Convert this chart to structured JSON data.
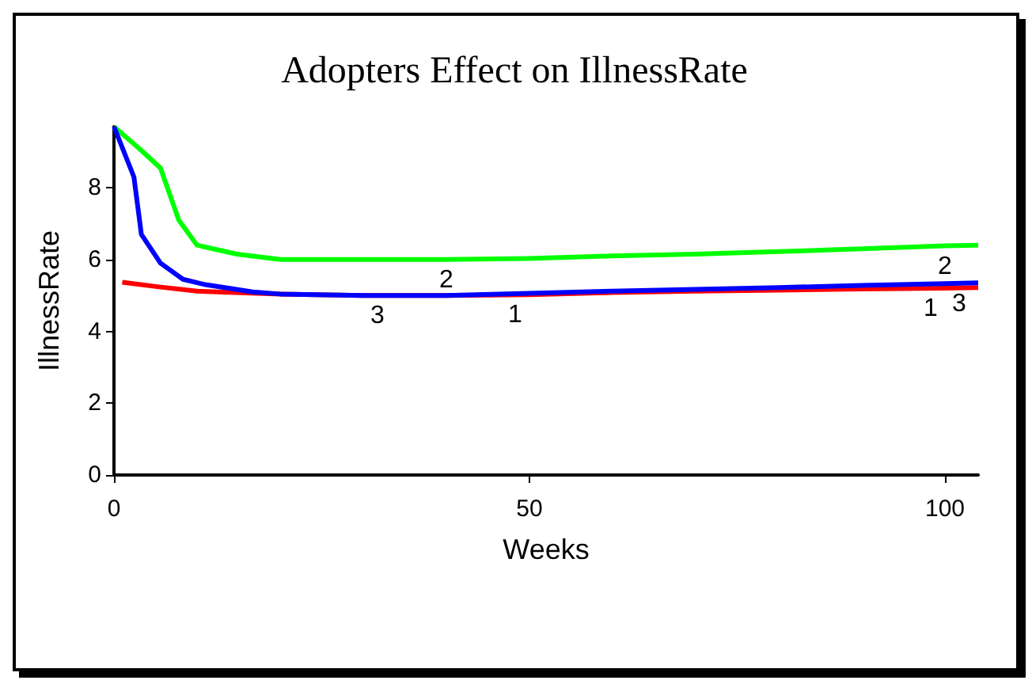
{
  "chart_data": {
    "type": "line",
    "title": "Adopters Effect on IllnessRate",
    "xlabel": "Weeks",
    "ylabel": "IllnessRate",
    "xlim": [
      0,
      104
    ],
    "xticks": [
      0,
      50,
      100
    ],
    "ylim": [
      0,
      9.7
    ],
    "yticks": [
      0,
      2,
      4,
      6,
      8
    ],
    "grid": false,
    "legend": false,
    "marker": "none",
    "line_style": "solid",
    "series": [
      {
        "name": "1",
        "color": "#ff0000",
        "x": [
          1,
          5,
          10,
          20,
          30,
          40,
          50,
          60,
          70,
          80,
          90,
          100,
          104
        ],
        "values": [
          5.37,
          5.25,
          5.12,
          5.04,
          5.0,
          5.0,
          5.02,
          5.08,
          5.12,
          5.15,
          5.18,
          5.2,
          5.22
        ]
      },
      {
        "name": "2",
        "color": "#00ff00",
        "x": [
          0,
          3,
          5.6,
          7.8,
          10,
          14.8,
          20,
          30,
          40,
          50,
          60,
          70,
          80,
          90,
          100,
          104
        ],
        "values": [
          9.7,
          9.1,
          8.55,
          7.1,
          6.4,
          6.15,
          6.0,
          6.0,
          6.0,
          6.03,
          6.1,
          6.15,
          6.22,
          6.3,
          6.38,
          6.4
        ]
      },
      {
        "name": "3",
        "color": "#0000ff",
        "x": [
          0,
          2.4,
          3.3,
          5.6,
          8.3,
          11,
          16.7,
          20,
          30,
          40,
          50,
          60,
          70,
          80,
          90,
          100,
          104
        ],
        "values": [
          9.7,
          8.3,
          6.7,
          5.9,
          5.45,
          5.3,
          5.1,
          5.04,
          5.0,
          5.0,
          5.06,
          5.12,
          5.17,
          5.22,
          5.28,
          5.33,
          5.35
        ]
      }
    ]
  }
}
